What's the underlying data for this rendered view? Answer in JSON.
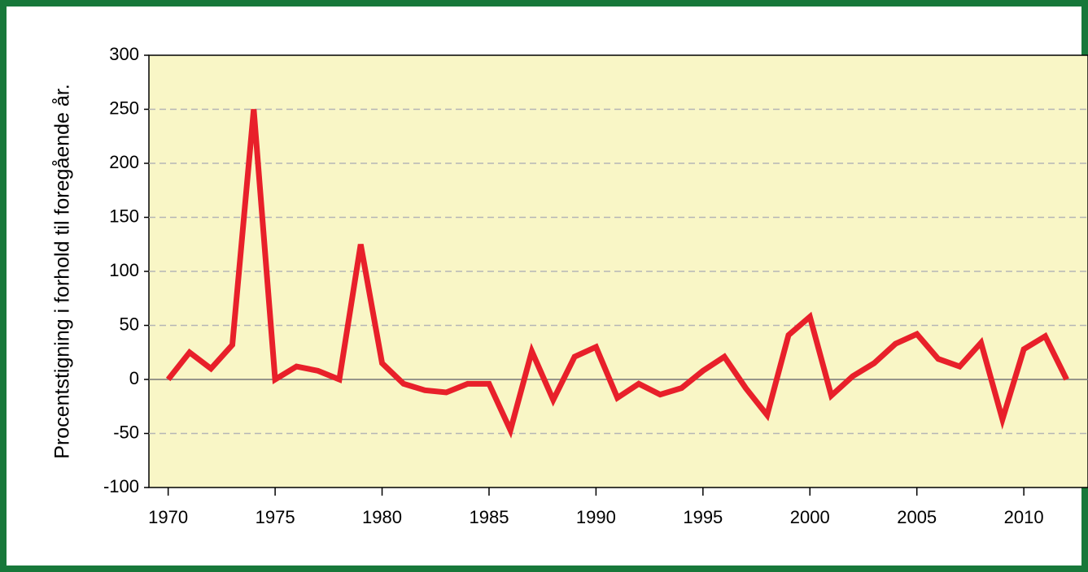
{
  "chart_data": {
    "type": "line",
    "y_label": "Procentstigning i forhold til foregående år.",
    "x": [
      1970,
      1971,
      1972,
      1973,
      1974,
      1975,
      1976,
      1977,
      1978,
      1979,
      1980,
      1981,
      1982,
      1983,
      1984,
      1985,
      1986,
      1987,
      1988,
      1989,
      1990,
      1991,
      1992,
      1993,
      1994,
      1995,
      1996,
      1997,
      1998,
      1999,
      2000,
      2001,
      2002,
      2003,
      2004,
      2005,
      2006,
      2007,
      2008,
      2009,
      2010,
      2011,
      2012
    ],
    "series": [
      {
        "color": "#e8202a",
        "values": [
          0,
          25,
          10,
          32,
          250,
          0,
          12,
          8,
          0,
          125,
          15,
          -4,
          -10,
          -12,
          -4,
          -4,
          -47,
          26,
          -19,
          21,
          30,
          -17,
          -4,
          -14,
          -8,
          8,
          21,
          -8,
          -33,
          41,
          58,
          -15,
          3,
          15,
          33,
          42,
          19,
          12,
          34,
          -37,
          28,
          40,
          0
        ]
      }
    ],
    "xlim": [
      1969.1,
      2013
    ],
    "xticks": [
      1970,
      1975,
      1980,
      1985,
      1990,
      1995,
      2000,
      2005,
      2010
    ],
    "ylim": [
      -100,
      300
    ],
    "yticks": [
      -100,
      -50,
      0,
      50,
      100,
      150,
      200,
      250,
      300
    ],
    "grid": true,
    "background": "#f9f6c6"
  }
}
